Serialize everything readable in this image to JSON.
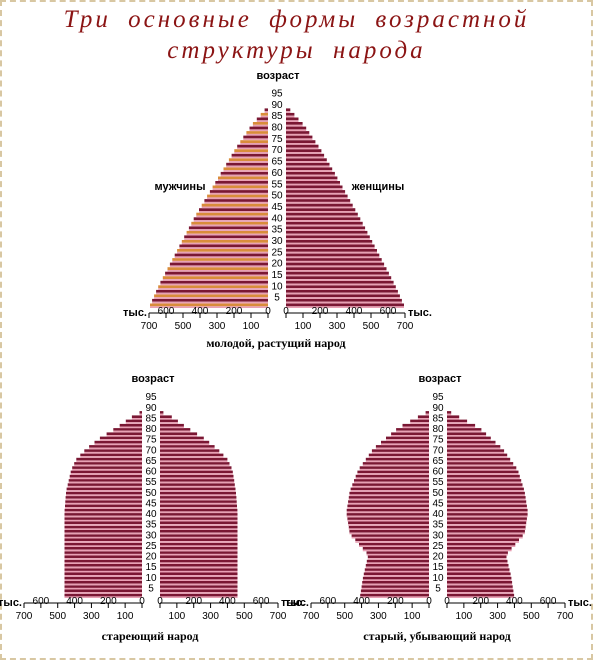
{
  "title": {
    "line1": "Три основные формы возрастной",
    "line2": "структуры народа"
  },
  "colors": {
    "title": "#8b1414",
    "bar_dark": "#7a1733",
    "bar_pink": "#e8a0b4",
    "bar_orange": "#d98c3a",
    "border": "#d8c7a2"
  },
  "labels": {
    "age_axis": "возраст",
    "men": "мужчины",
    "women": "женщины",
    "thousands": "тыс."
  },
  "chart_data": [
    {
      "type": "bar",
      "orientation": "population-pyramid",
      "caption": "молодой, растущий народ",
      "age_ticks": [
        "95",
        "90",
        "85",
        "80",
        "75",
        "70",
        "65",
        "60",
        "55",
        "50",
        "45",
        "40",
        "35",
        "30",
        "25",
        "20",
        "15",
        "10",
        "5"
      ],
      "x_upper_ticks": [
        "600",
        "400",
        "200",
        "0"
      ],
      "x_lower_ticks": [
        "700",
        "500",
        "300",
        "100"
      ],
      "xlim": [
        0,
        700
      ],
      "series": [
        {
          "name": "мужчины",
          "profile": [
            [
              0,
              700
            ],
            [
              10,
              640
            ],
            [
              20,
              570
            ],
            [
              30,
              500
            ],
            [
              40,
              430
            ],
            [
              50,
              350
            ],
            [
              60,
              270
            ],
            [
              70,
              190
            ],
            [
              80,
              100
            ],
            [
              87,
              20
            ]
          ]
        },
        {
          "name": "женщины",
          "profile": [
            [
              0,
              700
            ],
            [
              10,
              640
            ],
            [
              20,
              570
            ],
            [
              30,
              500
            ],
            [
              40,
              430
            ],
            [
              50,
              355
            ],
            [
              60,
              280
            ],
            [
              70,
              200
            ],
            [
              80,
              110
            ],
            [
              87,
              25
            ]
          ]
        }
      ]
    },
    {
      "type": "bar",
      "orientation": "population-pyramid",
      "caption": "стареющий народ",
      "age_ticks": [
        "95",
        "90",
        "85",
        "80",
        "75",
        "70",
        "65",
        "60",
        "55",
        "50",
        "45",
        "40",
        "35",
        "30",
        "25",
        "20",
        "15",
        "10",
        "5"
      ],
      "x_upper_ticks": [
        "600",
        "400",
        "200",
        "0"
      ],
      "x_lower_ticks": [
        "700",
        "500",
        "300",
        "100"
      ],
      "xlim": [
        0,
        700
      ],
      "series": [
        {
          "name": "мужчины",
          "profile": [
            [
              0,
              460
            ],
            [
              40,
              460
            ],
            [
              50,
              450
            ],
            [
              60,
              420
            ],
            [
              65,
              390
            ],
            [
              70,
              330
            ],
            [
              75,
              250
            ],
            [
              80,
              150
            ],
            [
              85,
              60
            ],
            [
              87,
              15
            ]
          ]
        },
        {
          "name": "женщины",
          "profile": [
            [
              0,
              460
            ],
            [
              40,
              460
            ],
            [
              50,
              450
            ],
            [
              60,
              430
            ],
            [
              65,
              400
            ],
            [
              70,
              340
            ],
            [
              75,
              260
            ],
            [
              80,
              160
            ],
            [
              85,
              70
            ],
            [
              87,
              20
            ]
          ]
        }
      ]
    },
    {
      "type": "bar",
      "orientation": "population-pyramid",
      "caption": "старый, убывающий народ",
      "age_ticks": [
        "95",
        "90",
        "85",
        "80",
        "75",
        "70",
        "65",
        "60",
        "55",
        "50",
        "45",
        "40",
        "35",
        "30",
        "25",
        "20",
        "15",
        "10",
        "5"
      ],
      "x_upper_ticks": [
        "600",
        "400",
        "200",
        "0"
      ],
      "x_lower_ticks": [
        "700",
        "500",
        "300",
        "100"
      ],
      "xlim": [
        0,
        700
      ],
      "series": [
        {
          "name": "мужчины",
          "profile": [
            [
              0,
              410
            ],
            [
              10,
              390
            ],
            [
              20,
              360
            ],
            [
              30,
              470
            ],
            [
              40,
              490
            ],
            [
              50,
              470
            ],
            [
              60,
              420
            ],
            [
              70,
              330
            ],
            [
              80,
              180
            ],
            [
              87,
              20
            ]
          ]
        },
        {
          "name": "женщины",
          "profile": [
            [
              0,
              400
            ],
            [
              10,
              380
            ],
            [
              20,
              350
            ],
            [
              30,
              460
            ],
            [
              40,
              480
            ],
            [
              50,
              460
            ],
            [
              60,
              420
            ],
            [
              70,
              330
            ],
            [
              80,
              190
            ],
            [
              87,
              25
            ]
          ]
        }
      ]
    }
  ]
}
